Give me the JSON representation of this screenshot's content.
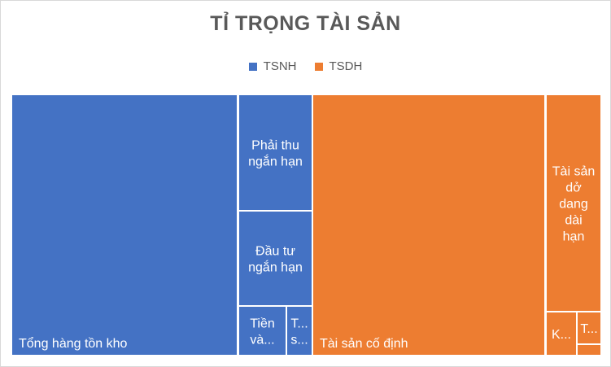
{
  "chart_data": {
    "type": "treemap",
    "title": "TỈ TRỌNG TÀI SẢN",
    "legend_position": "top",
    "series": [
      {
        "name": "TSNH",
        "color": "#4472c4",
        "items": [
          {
            "label": "Tổng hàng tồn kho",
            "value": 38.4,
            "lines": [
              "Tổng hàng tồn kho"
            ],
            "text_pos": "bottom-left"
          },
          {
            "label": "Phải thu ngắn hạn",
            "value": 5.0,
            "lines": [
              "Phải thu",
              "ngắn hạn"
            ],
            "text_pos": "center"
          },
          {
            "label": "Đầu tư ngắn hạn",
            "value": 4.4,
            "lines": [
              "Đầu tư",
              "ngắn hạn"
            ],
            "text_pos": "center"
          },
          {
            "label": "Tiền và...",
            "value": 2.3,
            "lines": [
              "Tiền",
              "và..."
            ],
            "text_pos": "center"
          },
          {
            "label": "T... s...",
            "value": 1.2,
            "lines": [
              "T...",
              "s..."
            ],
            "text_pos": "center"
          }
        ]
      },
      {
        "name": "TSDH",
        "color": "#ed7d31",
        "items": [
          {
            "label": "Tài sản cố định",
            "value": 39.6,
            "lines": [
              "Tài sản cố định"
            ],
            "text_pos": "bottom-left"
          },
          {
            "label": "Tài sản dở dang dài hạn",
            "value": 4.7,
            "lines": [
              "Tài sản",
              "dở",
              "dang",
              "dài",
              "hạn"
            ],
            "text_pos": "center"
          },
          {
            "label": "K...",
            "value": 1.1,
            "lines": [
              "K..."
            ],
            "text_pos": "center"
          },
          {
            "label": "T...",
            "value": 0.8,
            "lines": [
              "T..."
            ],
            "text_pos": "center"
          },
          {
            "label": "",
            "value": 0.4,
            "lines": [],
            "text_pos": "center"
          }
        ]
      }
    ]
  }
}
